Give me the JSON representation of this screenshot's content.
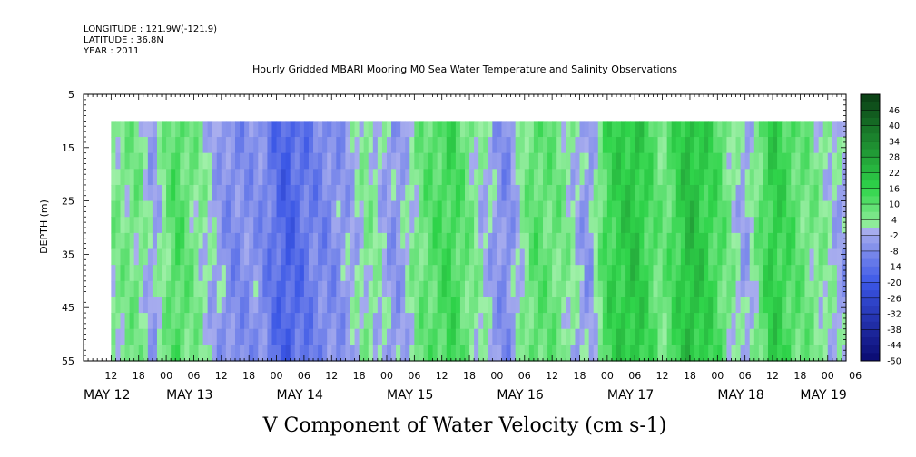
{
  "meta": {
    "longitude": "LONGITUDE : 121.9W(-121.9)",
    "latitude": "LATITUDE : 36.8N",
    "year": "YEAR : 2011"
  },
  "chart_data": {
    "type": "heatmap",
    "title": "Hourly Gridded MBARI Mooring M0 Sea Water Temperature and Salinity Observations",
    "xlabel": "V Component of Water Velocity (cm s-1)",
    "ylabel": "DEPTH (m)",
    "ylim": [
      55,
      5
    ],
    "y_ticks": [
      5,
      15,
      25,
      35,
      45,
      55
    ],
    "xlim_hours": [
      0,
      166
    ],
    "x_hour_ticks": [
      "12",
      "18",
      "00",
      "06",
      "12",
      "18",
      "00",
      "06",
      "12",
      "18",
      "00",
      "06",
      "12",
      "18",
      "00",
      "06",
      "12",
      "18",
      "00",
      "06",
      "12",
      "18",
      "00",
      "06",
      "12",
      "18",
      "00",
      "06"
    ],
    "x_day_labels": [
      "MAY 12",
      "MAY 13",
      "MAY 14",
      "MAY 15",
      "MAY 16",
      "MAY 17",
      "MAY 18",
      "MAY 19"
    ],
    "data_start_hour": 6,
    "data_end_hour": 166,
    "data_depth_range": [
      10,
      55
    ],
    "colorbar_levels": [
      46,
      40,
      34,
      28,
      22,
      16,
      10,
      4,
      -2,
      -8,
      -14,
      -20,
      -26,
      -32,
      -38,
      -44,
      -50
    ],
    "colorbar_range": [
      -50,
      52
    ],
    "colors": {
      "positive_max": "#0a3d14",
      "positive_mid": "#2fd44a",
      "positive_low": "#9ff0a8",
      "negative_low": "#a9aeee",
      "negative_mid": "#3b57e6",
      "negative_max": "#0a0a70"
    },
    "velocity_profile": [
      {
        "hour": 6,
        "v": 4
      },
      {
        "hour": 12,
        "v": 6
      },
      {
        "hour": 15,
        "v": -4
      },
      {
        "hour": 20,
        "v": 12
      },
      {
        "hour": 26,
        "v": 2
      },
      {
        "hour": 32,
        "v": -8
      },
      {
        "hour": 38,
        "v": -6
      },
      {
        "hour": 44,
        "v": -18
      },
      {
        "hour": 50,
        "v": -10
      },
      {
        "hour": 56,
        "v": -6
      },
      {
        "hour": 62,
        "v": 4
      },
      {
        "hour": 68,
        "v": -6
      },
      {
        "hour": 74,
        "v": 8
      },
      {
        "hour": 80,
        "v": 14
      },
      {
        "hour": 86,
        "v": 2
      },
      {
        "hour": 92,
        "v": -8
      },
      {
        "hour": 98,
        "v": 10
      },
      {
        "hour": 104,
        "v": 6
      },
      {
        "hour": 110,
        "v": -6
      },
      {
        "hour": 114,
        "v": 14
      },
      {
        "hour": 120,
        "v": 20
      },
      {
        "hour": 126,
        "v": 6
      },
      {
        "hour": 132,
        "v": 22
      },
      {
        "hour": 138,
        "v": 12
      },
      {
        "hour": 144,
        "v": -4
      },
      {
        "hour": 150,
        "v": 18
      },
      {
        "hour": 156,
        "v": 8
      },
      {
        "hour": 162,
        "v": 2
      },
      {
        "hour": 166,
        "v": -4
      }
    ]
  }
}
